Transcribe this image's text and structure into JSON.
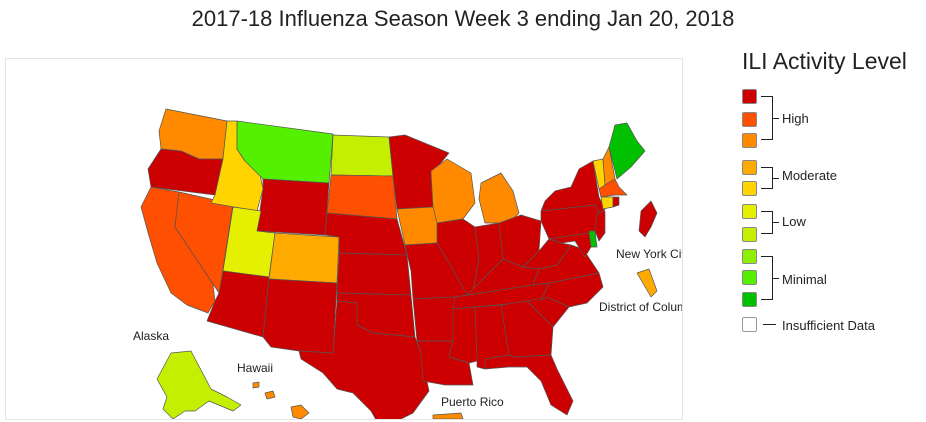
{
  "title": "2017-18 Influenza Season Week 3 ending Jan 20, 2018",
  "legend": {
    "title": "ILI Activity Level",
    "swatches": [
      "#cc0000",
      "#ff4f00",
      "#ff8a00",
      "#ffaa00",
      "#ffd400",
      "#e4f000",
      "#c4ef00",
      "#8eef00",
      "#55ef00",
      "#00c000",
      "#ffffff"
    ],
    "groups": [
      "High",
      "Moderate",
      "Low",
      "Minimal",
      "Insufficient Data"
    ]
  },
  "map": {
    "labels": [
      "Alaska",
      "Hawaii",
      "New York City",
      "District of Columbia",
      "Puerto Rico"
    ],
    "colors": {
      "high_1": "#cc0000",
      "high_2": "#ff4f00",
      "high_3": "#ff8a00",
      "moderate_1": "#ffaa00",
      "moderate_2": "#ffd400",
      "low_1": "#e4f000",
      "low_2": "#c4ef00",
      "minimal_1": "#8eef00",
      "minimal_2": "#55ef00",
      "minimal_3": "#00c000"
    },
    "states": [
      {
        "name": "WA",
        "level": "high_3"
      },
      {
        "name": "OR",
        "level": "high_1"
      },
      {
        "name": "CA",
        "level": "high_2"
      },
      {
        "name": "NV",
        "level": "high_2"
      },
      {
        "name": "ID",
        "level": "moderate_2"
      },
      {
        "name": "MT",
        "level": "minimal_2"
      },
      {
        "name": "WY",
        "level": "high_1"
      },
      {
        "name": "UT",
        "level": "low_1"
      },
      {
        "name": "AZ",
        "level": "high_1"
      },
      {
        "name": "CO",
        "level": "moderate_1"
      },
      {
        "name": "NM",
        "level": "high_1"
      },
      {
        "name": "ND",
        "level": "low_2"
      },
      {
        "name": "SD",
        "level": "high_2"
      },
      {
        "name": "NE",
        "level": "high_1"
      },
      {
        "name": "KS",
        "level": "high_1"
      },
      {
        "name": "OK",
        "level": "high_1"
      },
      {
        "name": "TX",
        "level": "high_1"
      },
      {
        "name": "MN",
        "level": "high_1"
      },
      {
        "name": "IA",
        "level": "high_3"
      },
      {
        "name": "MO",
        "level": "high_1"
      },
      {
        "name": "AR",
        "level": "high_1"
      },
      {
        "name": "LA",
        "level": "high_1"
      },
      {
        "name": "WI",
        "level": "high_3"
      },
      {
        "name": "IL",
        "level": "high_1"
      },
      {
        "name": "MI",
        "level": "high_3"
      },
      {
        "name": "IN",
        "level": "high_1"
      },
      {
        "name": "OH",
        "level": "high_1"
      },
      {
        "name": "KY",
        "level": "high_1"
      },
      {
        "name": "TN",
        "level": "high_1"
      },
      {
        "name": "MS",
        "level": "high_1"
      },
      {
        "name": "AL",
        "level": "high_1"
      },
      {
        "name": "GA",
        "level": "high_1"
      },
      {
        "name": "FL",
        "level": "high_1"
      },
      {
        "name": "SC",
        "level": "high_1"
      },
      {
        "name": "NC",
        "level": "high_1"
      },
      {
        "name": "VA",
        "level": "high_1"
      },
      {
        "name": "WV",
        "level": "high_1"
      },
      {
        "name": "PA",
        "level": "high_1"
      },
      {
        "name": "NY",
        "level": "high_1"
      },
      {
        "name": "VT",
        "level": "moderate_2"
      },
      {
        "name": "NH",
        "level": "high_3"
      },
      {
        "name": "ME",
        "level": "minimal_3"
      },
      {
        "name": "MA",
        "level": "high_2"
      },
      {
        "name": "CT",
        "level": "moderate_2"
      },
      {
        "name": "RI",
        "level": "high_1"
      },
      {
        "name": "NJ",
        "level": "high_1"
      },
      {
        "name": "DE",
        "level": "minimal_3"
      },
      {
        "name": "MD",
        "level": "high_1"
      },
      {
        "name": "AK",
        "level": "low_2"
      },
      {
        "name": "HI",
        "level": "high_3"
      },
      {
        "name": "NYC",
        "level": "high_1"
      },
      {
        "name": "DC",
        "level": "moderate_1"
      },
      {
        "name": "PR",
        "level": "high_3"
      }
    ]
  }
}
